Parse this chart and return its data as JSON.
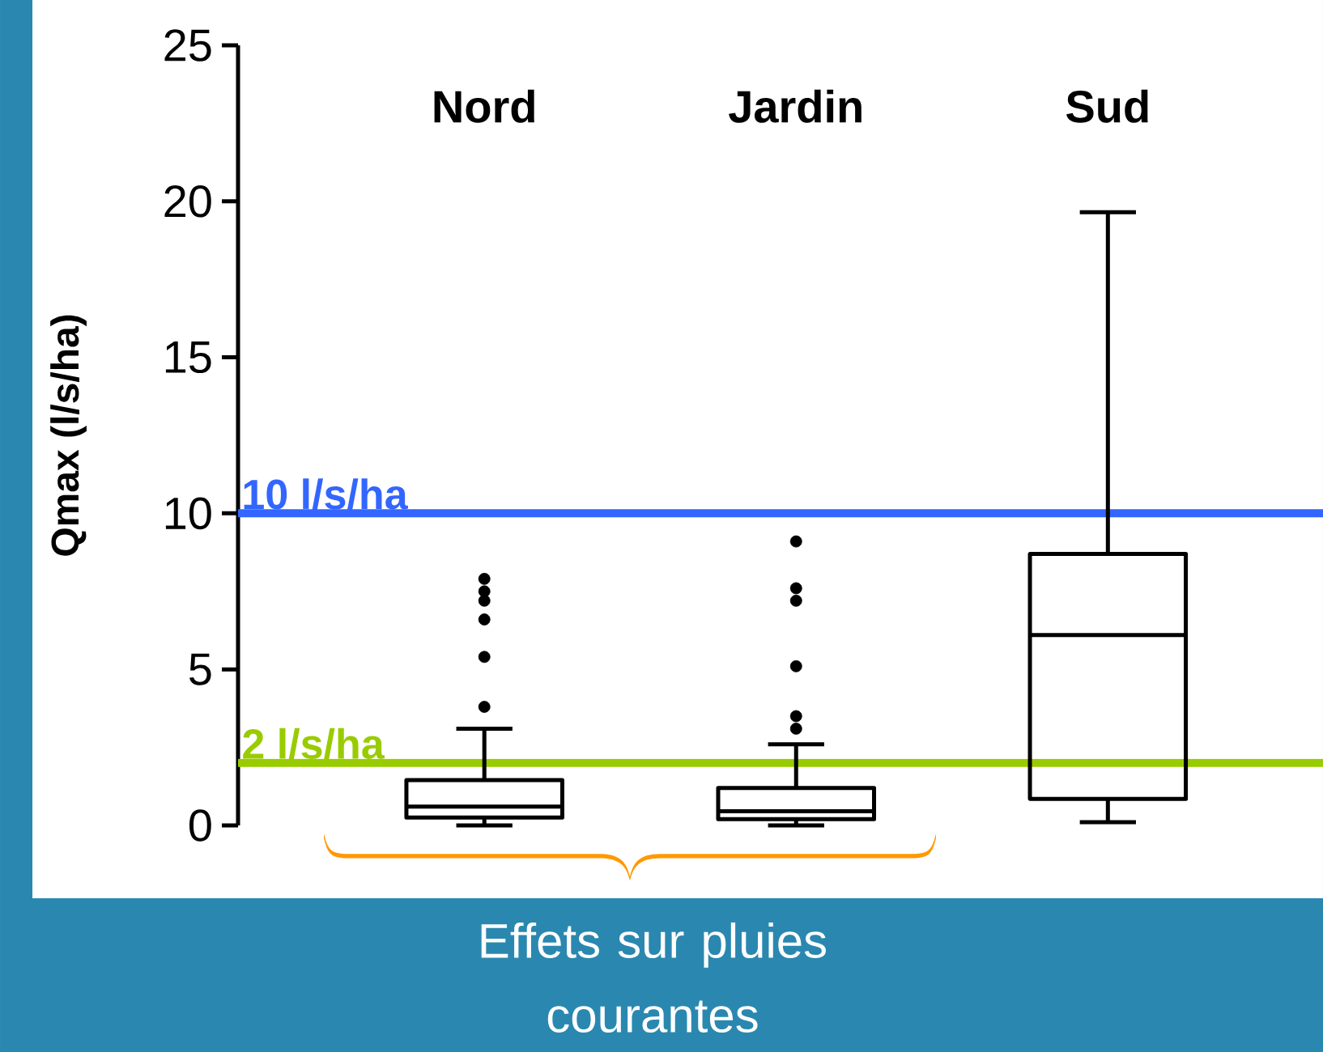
{
  "chart_data": {
    "type": "box",
    "categories": [
      "Nord",
      "Jardin",
      "Sud"
    ],
    "ylabel": "Qmax (l/s/ha)",
    "ylim": [
      0,
      25
    ],
    "yticks": [
      0,
      5,
      10,
      15,
      20,
      25
    ],
    "boxes": [
      {
        "low": 0,
        "q1": 0.25,
        "median": 0.6,
        "q3": 1.45,
        "high": 3.1,
        "outliers": [
          3.8,
          5.4,
          6.6,
          7.2,
          7.5,
          7.9
        ]
      },
      {
        "low": 0,
        "q1": 0.2,
        "median": 0.45,
        "q3": 1.2,
        "high": 2.6,
        "outliers": [
          3.1,
          3.5,
          5.1,
          7.2,
          7.6,
          9.1
        ]
      },
      {
        "low": 0.1,
        "q1": 0.85,
        "median": 6.1,
        "q3": 8.7,
        "high": 19.65
      }
    ],
    "ref_lines": [
      {
        "axis": "y",
        "value": 10,
        "label": "10 l/s/ha",
        "color": "#3366ff"
      },
      {
        "axis": "y",
        "value": 2,
        "label": "2 l/s/ha",
        "color": "#99cc00"
      }
    ],
    "annotations": [
      "Effets sur pluies courantes"
    ]
  }
}
